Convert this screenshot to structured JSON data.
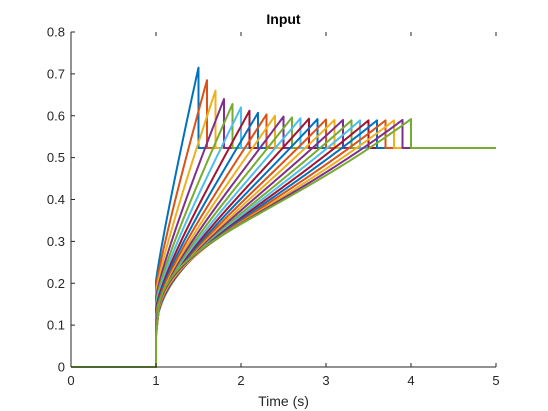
{
  "chart_data": {
    "type": "line",
    "title": "Input",
    "xlabel": "Time (s)",
    "ylabel": "",
    "xlim": [
      0,
      5
    ],
    "ylim": [
      0,
      0.8
    ],
    "xticks": [
      0,
      1,
      2,
      3,
      4,
      5
    ],
    "xtick_labels": [
      "0",
      "1",
      "2",
      "3",
      "4",
      "5"
    ],
    "yticks": [
      0,
      0.1,
      0.2,
      0.3,
      0.4,
      0.5,
      0.6,
      0.7,
      0.8
    ],
    "ytick_labels": [
      "0",
      "0.1",
      "0.2",
      "0.3",
      "0.4",
      "0.5",
      "0.6",
      "0.7",
      "0.8"
    ],
    "grid": false,
    "legend": "none",
    "step_time": 1,
    "steady_value": 0.523,
    "series": [
      {
        "color": "#0072BD",
        "jump": 0.205,
        "peak_time": 1.5,
        "peak": 0.715
      },
      {
        "color": "#D95319",
        "jump": 0.19,
        "peak_time": 1.6,
        "peak": 0.685
      },
      {
        "color": "#EDB120",
        "jump": 0.177,
        "peak_time": 1.7,
        "peak": 0.66
      },
      {
        "color": "#7E2F8E",
        "jump": 0.165,
        "peak_time": 1.8,
        "peak": 0.64
      },
      {
        "color": "#77AC30",
        "jump": 0.155,
        "peak_time": 1.9,
        "peak": 0.628
      },
      {
        "color": "#4DBEEE",
        "jump": 0.146,
        "peak_time": 2.0,
        "peak": 0.62
      },
      {
        "color": "#A2142F",
        "jump": 0.138,
        "peak_time": 2.1,
        "peak": 0.612
      },
      {
        "color": "#0072BD",
        "jump": 0.131,
        "peak_time": 2.2,
        "peak": 0.607
      },
      {
        "color": "#D95319",
        "jump": 0.125,
        "peak_time": 2.3,
        "peak": 0.603
      },
      {
        "color": "#EDB120",
        "jump": 0.119,
        "peak_time": 2.4,
        "peak": 0.6
      },
      {
        "color": "#7E2F8E",
        "jump": 0.114,
        "peak_time": 2.5,
        "peak": 0.598
      },
      {
        "color": "#77AC30",
        "jump": 0.109,
        "peak_time": 2.6,
        "peak": 0.596
      },
      {
        "color": "#4DBEEE",
        "jump": 0.105,
        "peak_time": 2.7,
        "peak": 0.594
      },
      {
        "color": "#A2142F",
        "jump": 0.101,
        "peak_time": 2.8,
        "peak": 0.593
      },
      {
        "color": "#0072BD",
        "jump": 0.097,
        "peak_time": 2.9,
        "peak": 0.592
      },
      {
        "color": "#D95319",
        "jump": 0.094,
        "peak_time": 3.0,
        "peak": 0.591
      },
      {
        "color": "#EDB120",
        "jump": 0.091,
        "peak_time": 3.1,
        "peak": 0.59
      },
      {
        "color": "#7E2F8E",
        "jump": 0.088,
        "peak_time": 3.2,
        "peak": 0.59
      },
      {
        "color": "#77AC30",
        "jump": 0.085,
        "peak_time": 3.3,
        "peak": 0.589
      },
      {
        "color": "#4DBEEE",
        "jump": 0.083,
        "peak_time": 3.4,
        "peak": 0.589
      },
      {
        "color": "#A2142F",
        "jump": 0.081,
        "peak_time": 3.5,
        "peak": 0.589
      },
      {
        "color": "#0072BD",
        "jump": 0.079,
        "peak_time": 3.6,
        "peak": 0.589
      },
      {
        "color": "#D95319",
        "jump": 0.077,
        "peak_time": 3.7,
        "peak": 0.589
      },
      {
        "color": "#EDB120",
        "jump": 0.075,
        "peak_time": 3.8,
        "peak": 0.589
      },
      {
        "color": "#7E2F8E",
        "jump": 0.074,
        "peak_time": 3.9,
        "peak": 0.59
      },
      {
        "color": "#77AC30",
        "jump": 0.072,
        "peak_time": 4.0,
        "peak": 0.592
      }
    ]
  }
}
